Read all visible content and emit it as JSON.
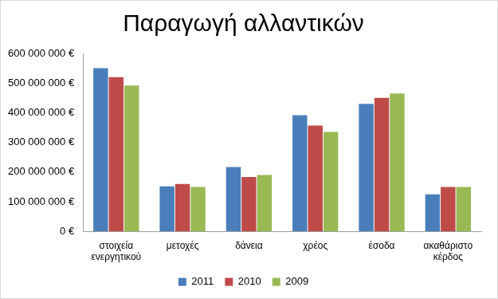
{
  "chart_data": {
    "type": "bar",
    "title": "Παραγωγή αλλαντικών",
    "categories": [
      "στοιχεία ενεργητικού",
      "μετοχές",
      "δάνεια",
      "χρέος",
      "έσοδα",
      "ακαθάριστο κέρδος"
    ],
    "series": [
      {
        "name": "2011",
        "color": "#4a7ebb",
        "values": [
          550000000,
          152000000,
          217000000,
          392000000,
          430000000,
          125000000
        ]
      },
      {
        "name": "2010",
        "color": "#be4b48",
        "values": [
          520000000,
          160000000,
          183000000,
          357000000,
          450000000,
          150000000
        ]
      },
      {
        "name": "2009",
        "color": "#98b954",
        "values": [
          492000000,
          150000000,
          190000000,
          335000000,
          465000000,
          150000000
        ]
      }
    ],
    "ylim": [
      0,
      600000000
    ],
    "yticks": [
      {
        "value": 0,
        "label": "0 €"
      },
      {
        "value": 100000000,
        "label": "100 000 000 €"
      },
      {
        "value": 200000000,
        "label": "200 000 000 €"
      },
      {
        "value": 300000000,
        "label": "300 000 000 €"
      },
      {
        "value": 400000000,
        "label": "400 000 000 €"
      },
      {
        "value": 500000000,
        "label": "500 000 000 €"
      },
      {
        "value": 600000000,
        "label": "600 000 000 €"
      }
    ],
    "grid": false,
    "legend": "bottom"
  }
}
